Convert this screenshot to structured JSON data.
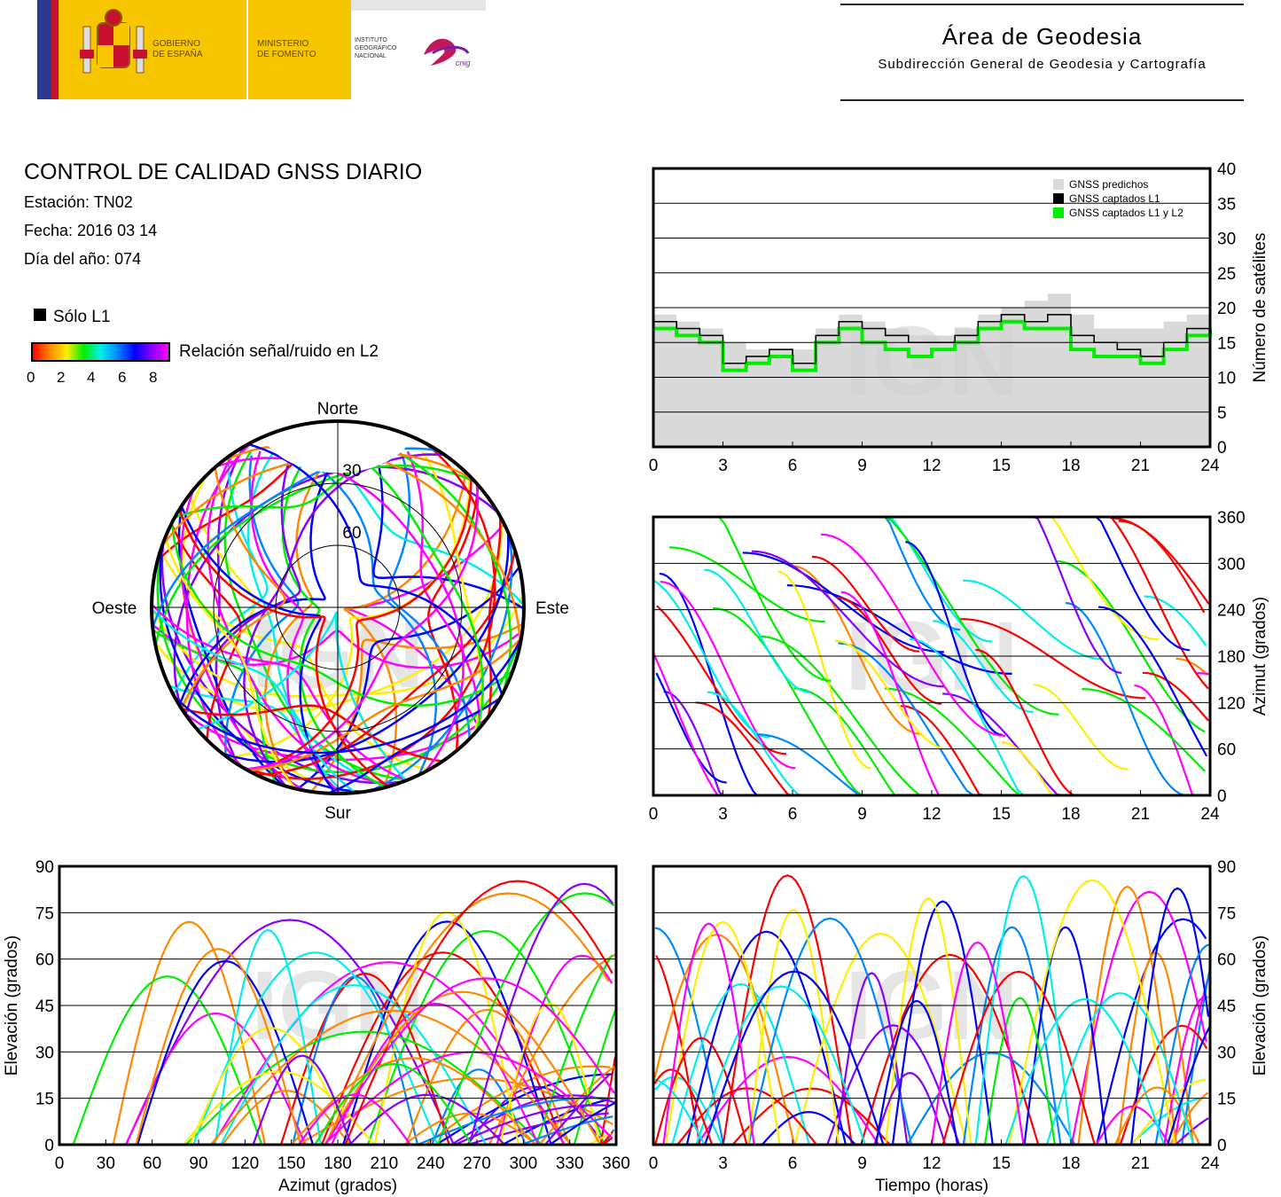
{
  "header": {
    "gov_line1": "GOBIERNO",
    "gov_line2": "DE ESPAÑA",
    "ministry_line1": "MINISTERIO",
    "ministry_line2": "DE FOMENTO",
    "ign_line1": "INSTITUTO",
    "ign_line2": "GEOGRÁFICO",
    "ign_line3": "NACIONAL",
    "cnig": "cnig",
    "area_title": "Área de Geodesia",
    "area_subtitle": "Subdirección General de Geodesia y Cartografía"
  },
  "info": {
    "title": "CONTROL DE CALIDAD GNSS DIARIO",
    "station": "Estación: TN02",
    "date": "Fecha: 2016 03 14",
    "doy": "Día del año: 074",
    "solo_l1": "Sólo L1",
    "snr_label": "Relación señal/ruido en L2",
    "snr_ticks": [
      "0",
      "2",
      "4",
      "6",
      "8"
    ]
  },
  "colors": {
    "predicted": "#d9d9d9",
    "l1": "#000000",
    "l1l2": "#00ee00",
    "snr_scale": [
      "#ff0000",
      "#ff8800",
      "#ffee00",
      "#00ee00",
      "#00eeee",
      "#0088ff",
      "#0000ff",
      "#8800ff",
      "#ff00ff"
    ]
  },
  "watermark": "IGN",
  "chart_data": [
    {
      "type": "line",
      "id": "satellites",
      "ylabel": "Número de satélites",
      "xlim": [
        0,
        24
      ],
      "ylim": [
        0,
        40
      ],
      "xticks": [
        "0",
        "3",
        "6",
        "9",
        "12",
        "15",
        "18",
        "21",
        "24"
      ],
      "yticks": [
        "0",
        "5",
        "10",
        "15",
        "20",
        "25",
        "30",
        "35",
        "40"
      ],
      "legend": [
        "GNSS predichos",
        "GNSS captados L1",
        "GNSS captados L1 y L2"
      ],
      "legend_position": "top-right",
      "x": [
        0,
        1,
        2,
        3,
        4,
        5,
        6,
        7,
        8,
        9,
        10,
        11,
        12,
        13,
        14,
        15,
        16,
        17,
        18,
        19,
        20,
        21,
        22,
        23,
        24
      ],
      "series": [
        {
          "name": "GNSS predichos",
          "values": [
            19,
            18,
            17,
            15,
            14,
            14,
            14,
            17,
            19,
            18,
            17,
            16,
            16,
            17,
            19,
            20,
            21,
            22,
            19,
            17,
            17,
            17,
            18,
            19,
            18
          ]
        },
        {
          "name": "GNSS captados L1",
          "values": [
            18,
            17,
            16,
            12,
            13,
            14,
            12,
            16,
            18,
            17,
            16,
            15,
            15,
            16,
            18,
            19,
            18,
            19,
            16,
            15,
            14,
            13,
            15,
            17,
            18
          ]
        },
        {
          "name": "GNSS captados L1 y L2",
          "values": [
            17,
            16,
            15,
            11,
            12,
            13,
            11,
            15,
            17,
            15,
            14,
            13,
            14,
            15,
            17,
            18,
            17,
            17,
            14,
            13,
            13,
            12,
            14,
            16,
            17
          ]
        }
      ]
    },
    {
      "type": "scatter",
      "id": "sky-plot",
      "labels": {
        "north": "Norte",
        "south": "Sur",
        "east": "Este",
        "west": "Oeste"
      },
      "rings": [
        "30",
        "60"
      ]
    },
    {
      "type": "scatter",
      "id": "azimuth-time",
      "ylabel": "Azimut (grados)",
      "xlim": [
        0,
        24
      ],
      "ylim": [
        0,
        360
      ],
      "xticks": [
        "0",
        "3",
        "6",
        "9",
        "12",
        "15",
        "18",
        "21",
        "24"
      ],
      "yticks": [
        "0",
        "60",
        "120",
        "180",
        "240",
        "300",
        "360"
      ]
    },
    {
      "type": "scatter",
      "id": "elevation-azimuth",
      "xlabel": "Azimut (grados)",
      "ylabel": "Elevación (grados)",
      "xlim": [
        0,
        360
      ],
      "ylim": [
        0,
        90
      ],
      "xticks": [
        "0",
        "30",
        "60",
        "90",
        "120",
        "150",
        "180",
        "210",
        "240",
        "270",
        "300",
        "330",
        "360"
      ],
      "yticks": [
        "0",
        "15",
        "30",
        "45",
        "60",
        "75",
        "90"
      ]
    },
    {
      "type": "line",
      "id": "elevation-time",
      "xlabel": "Tiempo (horas)",
      "ylabel": "Elevación (grados)",
      "xlim": [
        0,
        24
      ],
      "ylim": [
        0,
        90
      ],
      "xticks": [
        "0",
        "3",
        "6",
        "9",
        "12",
        "15",
        "18",
        "21",
        "24"
      ],
      "yticks": [
        "0",
        "15",
        "30",
        "45",
        "60",
        "75",
        "90"
      ]
    }
  ]
}
